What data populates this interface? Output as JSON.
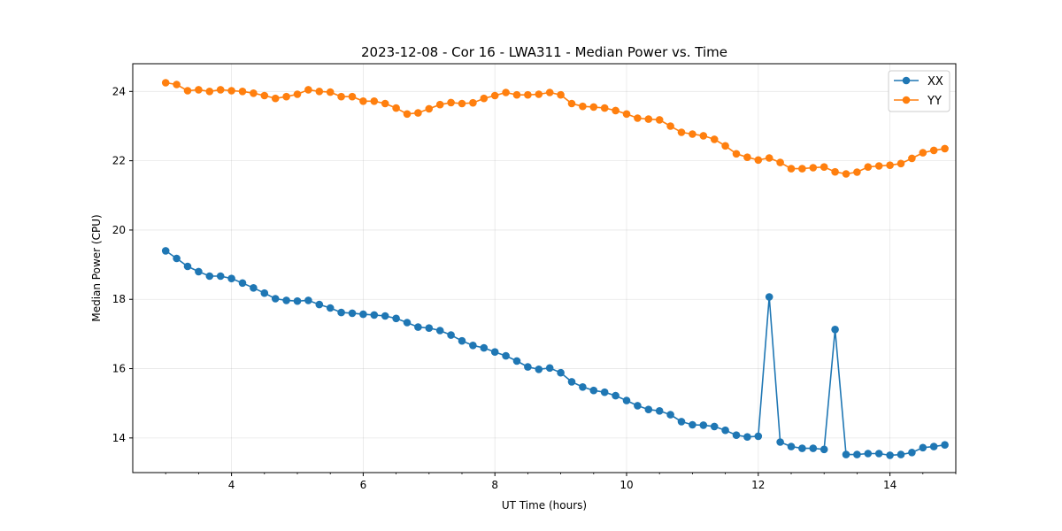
{
  "chart_data": {
    "type": "line",
    "title": "2023-12-08 - Cor 16 - LWA311 - Median Power vs. Time",
    "xlabel": "UT Time (hours)",
    "ylabel": "Median Power (CPU)",
    "xlim": [
      2.5,
      15.0
    ],
    "ylim": [
      13.0,
      24.8
    ],
    "xticks": [
      4,
      6,
      8,
      10,
      12,
      14
    ],
    "yticks": [
      14,
      16,
      18,
      20,
      22,
      24
    ],
    "grid": true,
    "legend_position": "top-right",
    "x": [
      3.0,
      3.167,
      3.333,
      3.5,
      3.667,
      3.833,
      4.0,
      4.167,
      4.333,
      4.5,
      4.667,
      4.833,
      5.0,
      5.167,
      5.333,
      5.5,
      5.667,
      5.833,
      6.0,
      6.167,
      6.333,
      6.5,
      6.667,
      6.833,
      7.0,
      7.167,
      7.333,
      7.5,
      7.667,
      7.833,
      8.0,
      8.167,
      8.333,
      8.5,
      8.667,
      8.833,
      9.0,
      9.167,
      9.333,
      9.5,
      9.667,
      9.833,
      10.0,
      10.167,
      10.333,
      10.5,
      10.667,
      10.833,
      11.0,
      11.167,
      11.333,
      11.5,
      11.667,
      11.833,
      12.0,
      12.167,
      12.333,
      12.5,
      12.667,
      12.833,
      13.0,
      13.167,
      13.333,
      13.5,
      13.667,
      13.833,
      14.0,
      14.167,
      14.333,
      14.5,
      14.667,
      14.833
    ],
    "series": [
      {
        "name": "XX",
        "color": "#1f77b4",
        "values": [
          19.4,
          19.18,
          18.95,
          18.8,
          18.67,
          18.67,
          18.6,
          18.47,
          18.33,
          18.18,
          18.02,
          17.97,
          17.95,
          17.97,
          17.85,
          17.75,
          17.62,
          17.6,
          17.57,
          17.55,
          17.52,
          17.45,
          17.33,
          17.2,
          17.17,
          17.1,
          16.97,
          16.8,
          16.67,
          16.6,
          16.48,
          16.37,
          16.22,
          16.05,
          15.98,
          16.02,
          15.88,
          15.62,
          15.47,
          15.37,
          15.32,
          15.22,
          15.08,
          14.93,
          14.82,
          14.78,
          14.67,
          14.47,
          14.38,
          14.37,
          14.33,
          14.22,
          14.08,
          14.03,
          14.05,
          18.07,
          13.88,
          13.75,
          13.7,
          13.7,
          13.67,
          17.13,
          13.52,
          13.52,
          13.55,
          13.55,
          13.5,
          13.52,
          13.58,
          13.72,
          13.75,
          13.8
        ]
      },
      {
        "name": "YY",
        "color": "#ff7f0e",
        "values": [
          24.25,
          24.2,
          24.02,
          24.05,
          24.0,
          24.05,
          24.02,
          24.0,
          23.95,
          23.88,
          23.8,
          23.85,
          23.92,
          24.05,
          24.0,
          23.98,
          23.85,
          23.85,
          23.72,
          23.72,
          23.65,
          23.52,
          23.35,
          23.38,
          23.5,
          23.62,
          23.68,
          23.65,
          23.67,
          23.8,
          23.88,
          23.97,
          23.9,
          23.9,
          23.92,
          23.97,
          23.9,
          23.65,
          23.57,
          23.55,
          23.52,
          23.45,
          23.35,
          23.23,
          23.2,
          23.18,
          23.0,
          22.82,
          22.77,
          22.72,
          22.62,
          22.43,
          22.2,
          22.1,
          22.02,
          22.08,
          21.95,
          21.77,
          21.77,
          21.8,
          21.82,
          21.68,
          21.62,
          21.67,
          21.82,
          21.85,
          21.87,
          21.92,
          22.07,
          22.23,
          22.3,
          22.35
        ]
      }
    ]
  }
}
